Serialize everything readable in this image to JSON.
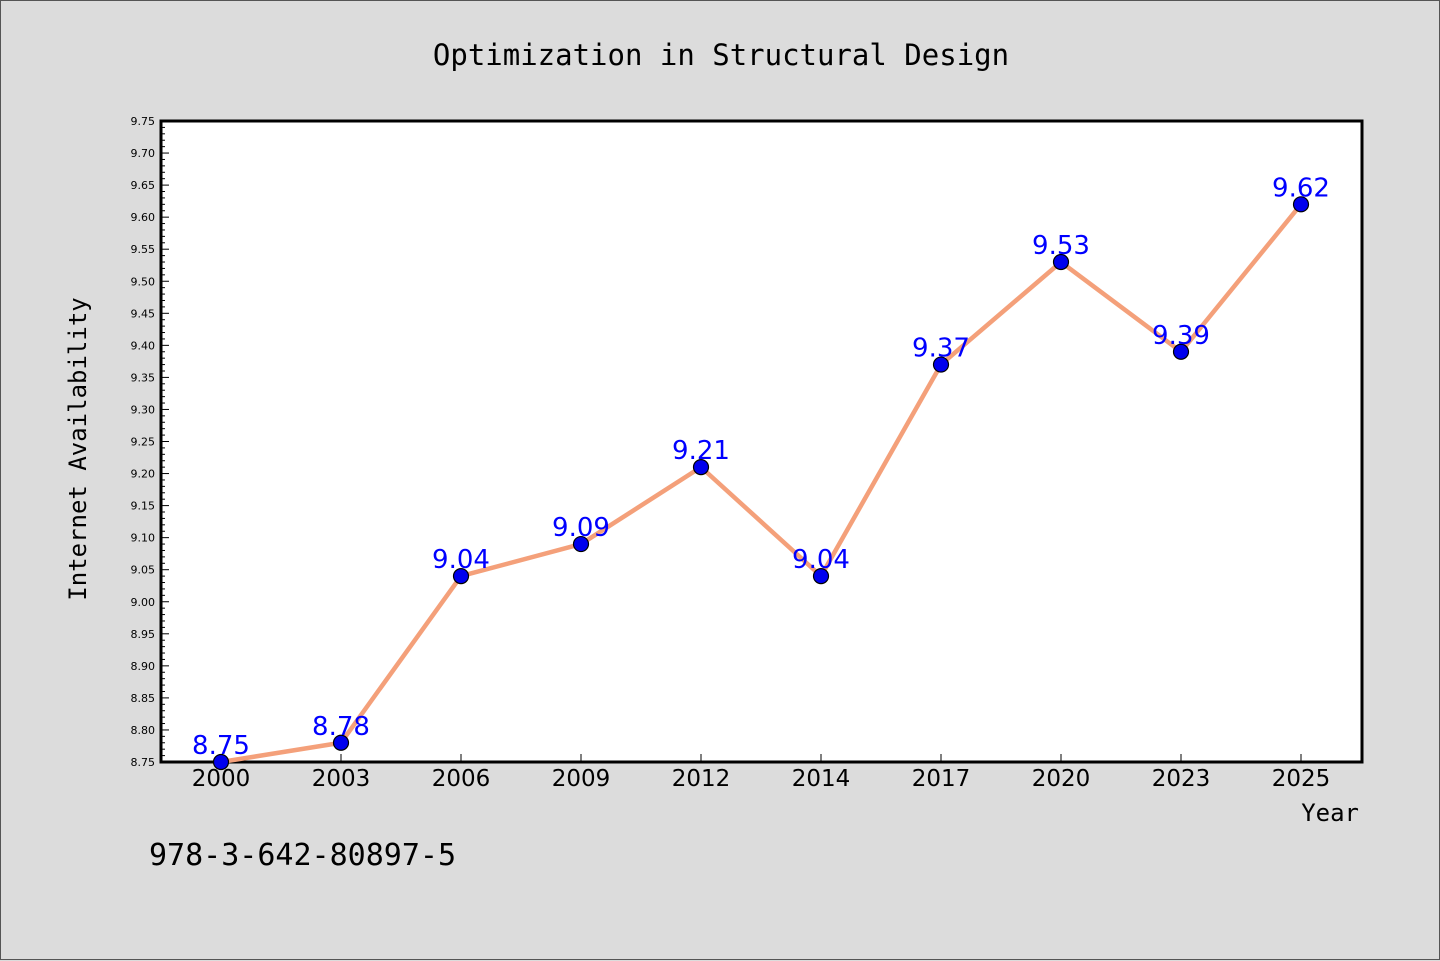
{
  "chart_data": {
    "type": "line",
    "title": "Optimization in Structural Design",
    "xlabel": "Year",
    "ylabel": "Internet Availability",
    "categories": [
      "2000",
      "2003",
      "2006",
      "2009",
      "2012",
      "2014",
      "2017",
      "2020",
      "2023",
      "2025"
    ],
    "series": [
      {
        "values": [
          8.75,
          8.78,
          9.04,
          9.09,
          9.21,
          9.04,
          9.37,
          9.53,
          9.39,
          9.62
        ],
        "data_labels": [
          "8.75",
          "8.78",
          "9.04",
          "9.09",
          "9.21",
          "9.04",
          "9.37",
          "9.53",
          "9.39",
          "9.62"
        ]
      }
    ],
    "ylim": [
      8.75,
      9.75
    ],
    "yticks": [
      "8.75",
      "8.80",
      "8.85",
      "8.90",
      "8.95",
      "9.00",
      "9.05",
      "9.10",
      "9.15",
      "9.20",
      "9.25",
      "9.30",
      "9.35",
      "9.40",
      "9.45",
      "9.50",
      "9.55",
      "9.60",
      "9.65",
      "9.70",
      "9.75"
    ],
    "grid": false,
    "legend": "none",
    "colors": {
      "line": "#f4a07a",
      "marker": "#0000ee",
      "marker_edge": "#000000",
      "data_label": "#0000ff",
      "background": "#dcdcdc",
      "plot_background": "#ffffff"
    }
  },
  "footer": {
    "isbn": "978-3-642-80897-5"
  }
}
